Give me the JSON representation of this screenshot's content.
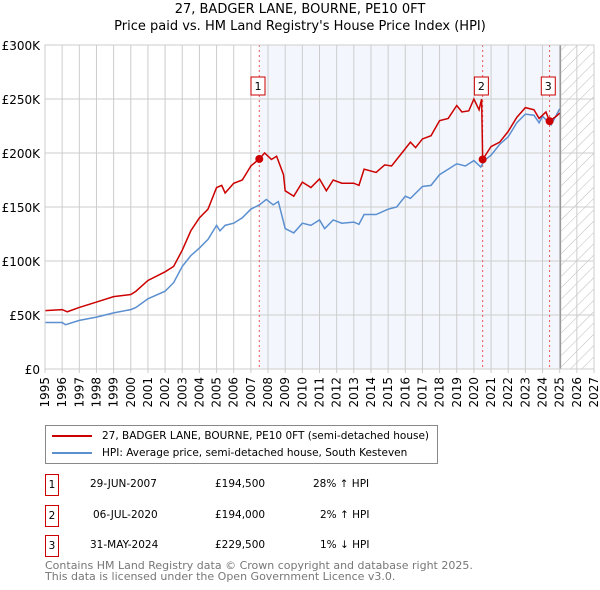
{
  "title": "27, BADGER LANE, BOURNE, PE10 0FT",
  "subtitle": "Price paid vs. HM Land Registry's House Price Index (HPI)",
  "legend": [
    {
      "label": "27, BADGER LANE, BOURNE, PE10 0FT (semi-detached house)",
      "color": "#cc0000"
    },
    {
      "label": "HPI: Average price, semi-detached house, South Kesteven",
      "color": "#5b8fd0"
    }
  ],
  "sales": [
    {
      "num": "1",
      "date": "29-JUN-2007",
      "price": "£194,500",
      "hpi": "28% ↑ HPI",
      "year": 2007.49,
      "value": 194500
    },
    {
      "num": "2",
      "date": "06-JUL-2020",
      "price": "£194,000",
      "hpi": "2% ↑ HPI",
      "year": 2020.51,
      "value": 194000
    },
    {
      "num": "3",
      "date": "31-MAY-2024",
      "price": "£229,500",
      "hpi": "1% ↓ HPI",
      "year": 2024.41,
      "value": 229500
    }
  ],
  "footer": [
    "Contains HM Land Registry data © Crown copyright and database right 2025.",
    "This data is licensed under the Open Government Licence v3.0."
  ],
  "chart_data": {
    "type": "line",
    "xlim": [
      1995,
      2027
    ],
    "ylim": [
      0,
      300000
    ],
    "xticks": [
      "1995",
      "1996",
      "1997",
      "1998",
      "1999",
      "2000",
      "2001",
      "2002",
      "2003",
      "2004",
      "2005",
      "2006",
      "2007",
      "2008",
      "2009",
      "2010",
      "2011",
      "2012",
      "2013",
      "2014",
      "2015",
      "2016",
      "2017",
      "2018",
      "2019",
      "2020",
      "2021",
      "2022",
      "2023",
      "2024",
      "2025",
      "2026",
      "2027"
    ],
    "yticks": [
      {
        "v": 0,
        "l": "£0"
      },
      {
        "v": 50000,
        "l": "£50K"
      },
      {
        "v": 100000,
        "l": "£100K"
      },
      {
        "v": 150000,
        "l": "£150K"
      },
      {
        "v": 200000,
        "l": "£200K"
      },
      {
        "v": 250000,
        "l": "£250K"
      },
      {
        "v": 300000,
        "l": "£300K"
      }
    ],
    "shaded_range": [
      2007.49,
      2025.0
    ],
    "forecast_from": 2025.1,
    "series": [
      {
        "name": "27, BADGER LANE, BOURNE, PE10 0FT (semi-detached house)",
        "color": "#cc0000",
        "points": [
          [
            1995,
            54
          ],
          [
            1996,
            55
          ],
          [
            1996.3,
            53
          ],
          [
            1997,
            57
          ],
          [
            1998,
            62
          ],
          [
            1999,
            67
          ],
          [
            2000,
            69
          ],
          [
            2000.3,
            72
          ],
          [
            2001,
            82
          ],
          [
            2002,
            90
          ],
          [
            2002.5,
            95
          ],
          [
            2003,
            110
          ],
          [
            2003.5,
            128
          ],
          [
            2004,
            140
          ],
          [
            2004.5,
            148
          ],
          [
            2005,
            168
          ],
          [
            2005.3,
            170
          ],
          [
            2005.5,
            163
          ],
          [
            2006,
            172
          ],
          [
            2006.5,
            175
          ],
          [
            2007,
            188
          ],
          [
            2007.49,
            194.5
          ],
          [
            2007.8,
            200
          ],
          [
            2008.2,
            194
          ],
          [
            2008.5,
            197
          ],
          [
            2008.9,
            180
          ],
          [
            2009,
            165
          ],
          [
            2009.5,
            160
          ],
          [
            2010,
            173
          ],
          [
            2010.5,
            168
          ],
          [
            2011,
            176
          ],
          [
            2011.4,
            165
          ],
          [
            2011.8,
            175
          ],
          [
            2012.3,
            172
          ],
          [
            2013,
            172
          ],
          [
            2013.3,
            170
          ],
          [
            2013.6,
            185
          ],
          [
            2014.3,
            182
          ],
          [
            2014.8,
            189
          ],
          [
            2015.2,
            188
          ],
          [
            2015.8,
            200
          ],
          [
            2016.3,
            210
          ],
          [
            2016.6,
            205
          ],
          [
            2017,
            213
          ],
          [
            2017.5,
            216
          ],
          [
            2018,
            230
          ],
          [
            2018.5,
            232
          ],
          [
            2019,
            244
          ],
          [
            2019.3,
            238
          ],
          [
            2019.7,
            239
          ],
          [
            2020,
            250
          ],
          [
            2020.3,
            240
          ],
          [
            2020.45,
            250
          ],
          [
            2020.51,
            194
          ],
          [
            2021,
            206
          ],
          [
            2021.5,
            210
          ],
          [
            2022,
            220
          ],
          [
            2022.5,
            233
          ],
          [
            2023,
            242
          ],
          [
            2023.5,
            240
          ],
          [
            2023.8,
            232
          ],
          [
            2024.2,
            238
          ],
          [
            2024.41,
            229.5
          ],
          [
            2024.8,
            234
          ],
          [
            2025,
            237
          ]
        ]
      },
      {
        "name": "HPI: Average price, semi-detached house, South Kesteven",
        "color": "#5b8fd0",
        "points": [
          [
            1995,
            43
          ],
          [
            1996,
            43
          ],
          [
            1996.2,
            41
          ],
          [
            1997,
            45
          ],
          [
            1998,
            48
          ],
          [
            1999,
            52
          ],
          [
            2000,
            55
          ],
          [
            2000.3,
            57
          ],
          [
            2001,
            65
          ],
          [
            2002,
            72
          ],
          [
            2002.5,
            80
          ],
          [
            2003,
            95
          ],
          [
            2003.5,
            105
          ],
          [
            2004,
            112
          ],
          [
            2004.5,
            120
          ],
          [
            2005,
            133
          ],
          [
            2005.2,
            128
          ],
          [
            2005.5,
            133
          ],
          [
            2006,
            135
          ],
          [
            2006.5,
            140
          ],
          [
            2007,
            148
          ],
          [
            2007.5,
            152
          ],
          [
            2007.9,
            157
          ],
          [
            2008.3,
            152
          ],
          [
            2008.6,
            155
          ],
          [
            2009,
            130
          ],
          [
            2009.5,
            126
          ],
          [
            2010,
            135
          ],
          [
            2010.5,
            133
          ],
          [
            2011,
            138
          ],
          [
            2011.3,
            130
          ],
          [
            2011.8,
            138
          ],
          [
            2012.3,
            135
          ],
          [
            2013,
            136
          ],
          [
            2013.3,
            134
          ],
          [
            2013.6,
            143
          ],
          [
            2014.3,
            143
          ],
          [
            2015,
            148
          ],
          [
            2015.5,
            150
          ],
          [
            2016,
            160
          ],
          [
            2016.3,
            158
          ],
          [
            2017,
            169
          ],
          [
            2017.5,
            170
          ],
          [
            2018,
            180
          ],
          [
            2018.5,
            185
          ],
          [
            2019,
            190
          ],
          [
            2019.5,
            188
          ],
          [
            2020,
            193
          ],
          [
            2020.4,
            187
          ],
          [
            2020.6,
            193
          ],
          [
            2021,
            198
          ],
          [
            2021.5,
            208
          ],
          [
            2022,
            215
          ],
          [
            2022.5,
            228
          ],
          [
            2023,
            236
          ],
          [
            2023.5,
            235
          ],
          [
            2023.8,
            228
          ],
          [
            2024,
            234
          ],
          [
            2024.5,
            226
          ],
          [
            2025,
            241
          ]
        ]
      }
    ],
    "point_units": "thousand GBP"
  }
}
